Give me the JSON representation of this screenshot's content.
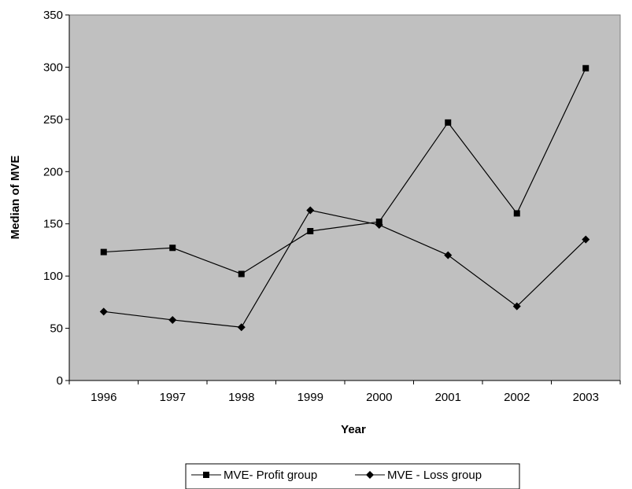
{
  "chart_data": {
    "type": "line",
    "title": "",
    "xlabel": "Year",
    "ylabel": "Median of MVE",
    "categories": [
      "1996",
      "1997",
      "1998",
      "1999",
      "2000",
      "2001",
      "2002",
      "2003"
    ],
    "ylim": [
      0,
      350
    ],
    "yticks": [
      0,
      50,
      100,
      150,
      200,
      250,
      300,
      350
    ],
    "grid": false,
    "plot_background": "#c0c0c0",
    "line_color": "#000000",
    "legend_position": "bottom",
    "series": [
      {
        "name": "MVE- Profit group",
        "marker": "square",
        "values": [
          123,
          127,
          102,
          143,
          152,
          247,
          160,
          299
        ]
      },
      {
        "name": "MVE - Loss group",
        "marker": "diamond",
        "values": [
          66,
          58,
          51,
          163,
          149,
          120,
          71,
          135
        ]
      }
    ]
  }
}
